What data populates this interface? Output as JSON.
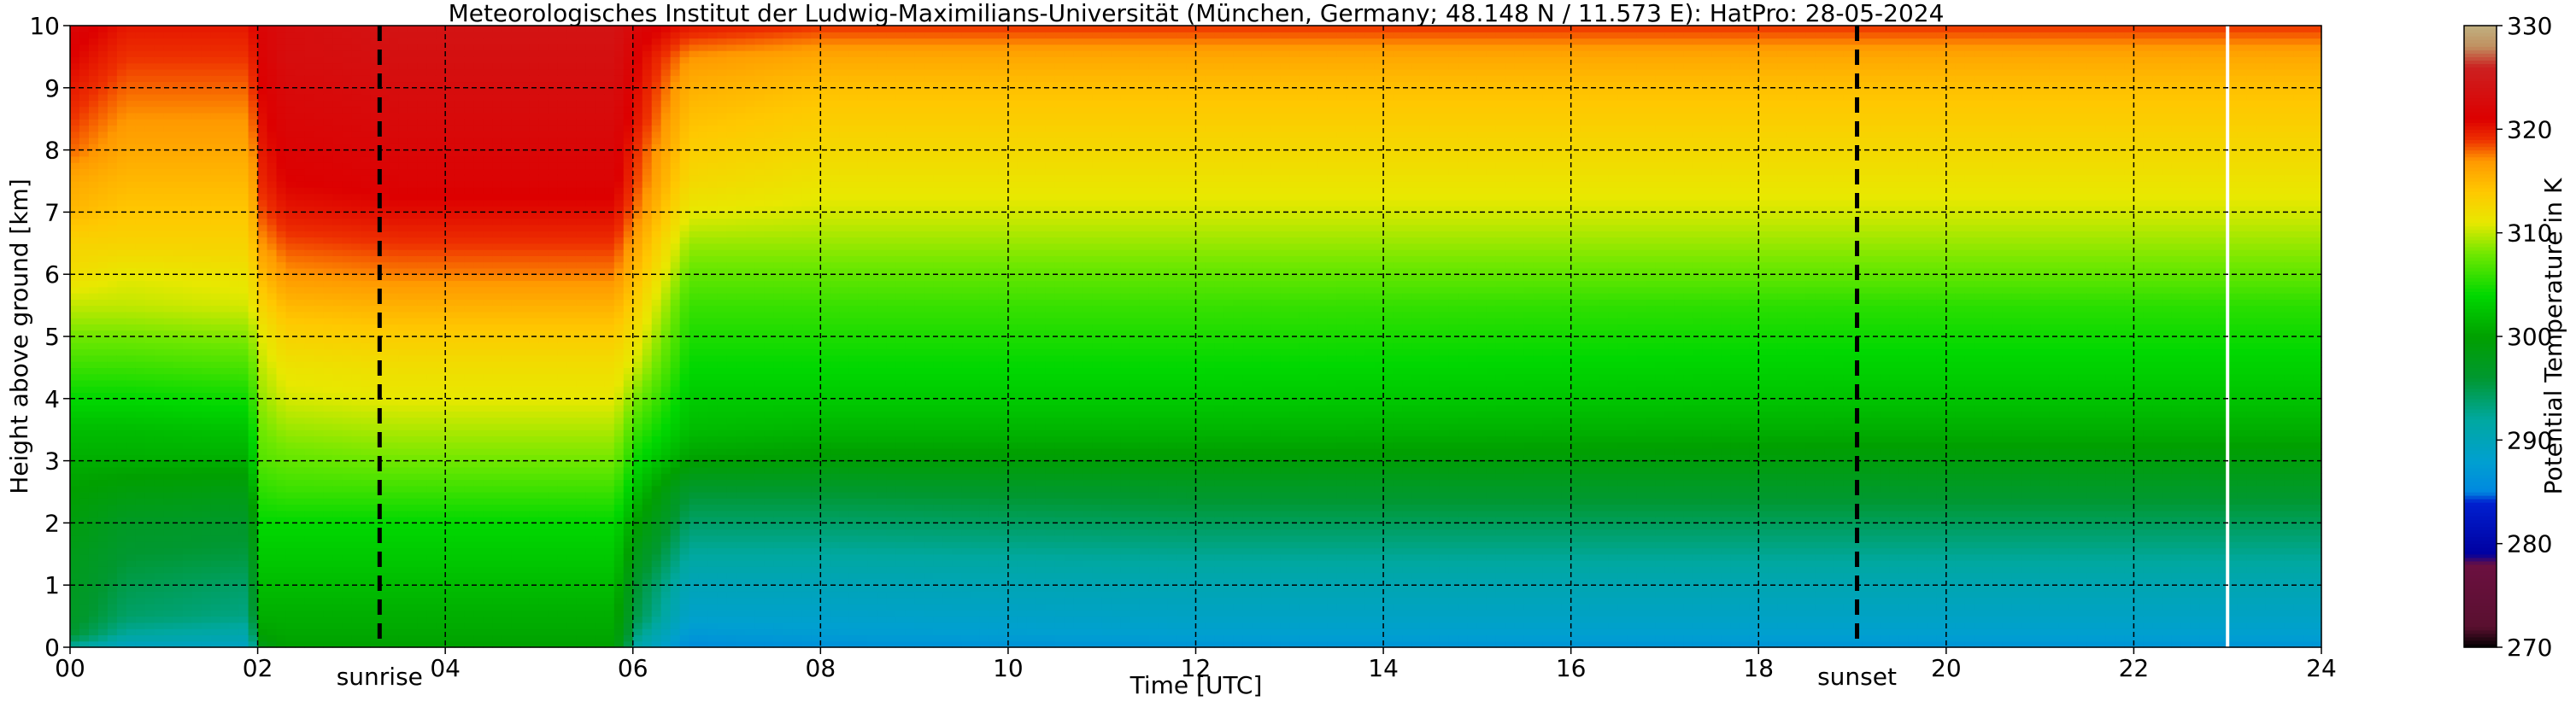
{
  "chart_data": {
    "type": "heatmap",
    "title": "Meteorologisches Institut der Ludwig-Maximilians-Universität (München, Germany; 48.148 N / 11.573 E):    HatPro: 28-05-2024",
    "xlabel": "Time [UTC]",
    "ylabel": "Height above ground [km]",
    "colorbar_label": "Potential Temperature in K",
    "xlim": [
      0,
      24
    ],
    "ylim": [
      0,
      10
    ],
    "clim": [
      270,
      330
    ],
    "x_ticks": [
      {
        "value": 0,
        "label": "00"
      },
      {
        "value": 2,
        "label": "02"
      },
      {
        "value": 4,
        "label": "04"
      },
      {
        "value": 6,
        "label": "06"
      },
      {
        "value": 8,
        "label": "08"
      },
      {
        "value": 10,
        "label": "10"
      },
      {
        "value": 12,
        "label": "12"
      },
      {
        "value": 14,
        "label": "14"
      },
      {
        "value": 16,
        "label": "16"
      },
      {
        "value": 18,
        "label": "18"
      },
      {
        "value": 20,
        "label": "20"
      },
      {
        "value": 22,
        "label": "22"
      },
      {
        "value": 24,
        "label": "24"
      }
    ],
    "y_ticks": [
      {
        "value": 0,
        "label": "0"
      },
      {
        "value": 1,
        "label": "1"
      },
      {
        "value": 2,
        "label": "2"
      },
      {
        "value": 3,
        "label": "3"
      },
      {
        "value": 4,
        "label": "4"
      },
      {
        "value": 5,
        "label": "5"
      },
      {
        "value": 6,
        "label": "6"
      },
      {
        "value": 7,
        "label": "7"
      },
      {
        "value": 8,
        "label": "8"
      },
      {
        "value": 9,
        "label": "9"
      },
      {
        "value": 10,
        "label": "10"
      }
    ],
    "colorbar_ticks": [
      {
        "value": 270,
        "label": "270"
      },
      {
        "value": 280,
        "label": "280"
      },
      {
        "value": 290,
        "label": "290"
      },
      {
        "value": 300,
        "label": "300"
      },
      {
        "value": 310,
        "label": "310"
      },
      {
        "value": 320,
        "label": "320"
      },
      {
        "value": 330,
        "label": "330"
      }
    ],
    "annotations": [
      {
        "x": 3.3,
        "label": "sunrise"
      },
      {
        "x": 19.05,
        "label": "sunset"
      }
    ],
    "grid": true,
    "colormap": [
      {
        "value": 270,
        "color": "#000000"
      },
      {
        "value": 272,
        "color": "#5a1030"
      },
      {
        "value": 278,
        "color": "#6b1040"
      },
      {
        "value": 279,
        "color": "#0000a0"
      },
      {
        "value": 284,
        "color": "#0020d0"
      },
      {
        "value": 285,
        "color": "#0088e0"
      },
      {
        "value": 288,
        "color": "#00a0d0"
      },
      {
        "value": 292,
        "color": "#00a8a0"
      },
      {
        "value": 296,
        "color": "#009830"
      },
      {
        "value": 300,
        "color": "#00a000"
      },
      {
        "value": 304,
        "color": "#00d800"
      },
      {
        "value": 308,
        "color": "#70e800"
      },
      {
        "value": 311,
        "color": "#e8e800"
      },
      {
        "value": 314,
        "color": "#ffc800"
      },
      {
        "value": 317,
        "color": "#ff9800"
      },
      {
        "value": 319,
        "color": "#ee3000"
      },
      {
        "value": 321,
        "color": "#dd0000"
      },
      {
        "value": 326,
        "color": "#cc2020"
      },
      {
        "value": 328,
        "color": "#c09060"
      },
      {
        "value": 330,
        "color": "#c0b080"
      }
    ],
    "profile_heights_km": [
      0,
      0.2,
      0.5,
      1,
      1.5,
      2,
      2.5,
      3,
      3.5,
      4,
      4.5,
      5,
      5.5,
      6,
      6.5,
      7,
      7.5,
      8,
      8.5,
      9,
      9.5,
      10
    ],
    "profiles": [
      {
        "time": 0.0,
        "theta": [
          292,
          296,
          297,
          297.5,
          298,
          299,
          300,
          301,
          302,
          304,
          306,
          308,
          310,
          312,
          313,
          315,
          316,
          318,
          319,
          320,
          321,
          322
        ]
      },
      {
        "time": 0.6,
        "theta": [
          289,
          292,
          294,
          295,
          296,
          297,
          299,
          301,
          302,
          304,
          306,
          308,
          310,
          311,
          313,
          314,
          315,
          316,
          317,
          318,
          319,
          320
        ]
      },
      {
        "time": 1.9,
        "theta": [
          289,
          291,
          293,
          294,
          295.5,
          296.5,
          298.5,
          301,
          302.5,
          304.5,
          306.5,
          308.5,
          310.5,
          311.5,
          313,
          314,
          315,
          316,
          317,
          318,
          319,
          320
        ]
      },
      {
        "time": 2.05,
        "theta": [
          298,
          300,
          301,
          302,
          303,
          304,
          305.5,
          307,
          308,
          309,
          310,
          311,
          313,
          315,
          317,
          318.5,
          319.5,
          320,
          320.5,
          321,
          321.5,
          322
        ]
      },
      {
        "time": 2.3,
        "theta": [
          300,
          300.5,
          301,
          302,
          303,
          304,
          306,
          307.5,
          309,
          310.5,
          311.5,
          313,
          315,
          317,
          318.5,
          320,
          321,
          321.5,
          322,
          322.5,
          323,
          323
        ]
      },
      {
        "time": 3.5,
        "theta": [
          300,
          300.5,
          301,
          302,
          303,
          304,
          306,
          308,
          309.5,
          311,
          312,
          313.5,
          315.5,
          317.5,
          319,
          320.5,
          321.5,
          322,
          322.5,
          323,
          323.5,
          324
        ]
      },
      {
        "time": 5.8,
        "theta": [
          300,
          300.5,
          301,
          302,
          303,
          304,
          306,
          308,
          309.5,
          311,
          312,
          313.5,
          315.5,
          317.5,
          319,
          320.5,
          321.5,
          322,
          322.5,
          323,
          323.5,
          324
        ]
      },
      {
        "time": 6.05,
        "theta": [
          291,
          293,
          295,
          296,
          298,
          300,
          302,
          304,
          306,
          308,
          310,
          311.5,
          313,
          314.5,
          316,
          317.5,
          318.5,
          319,
          320,
          320.5,
          321,
          322
        ]
      },
      {
        "time": 6.6,
        "theta": [
          285.5,
          287,
          288.5,
          290,
          292,
          294,
          296,
          300,
          302,
          303,
          304,
          305,
          306,
          307.5,
          309,
          311,
          312.5,
          313.5,
          314.5,
          315.5,
          317,
          320
        ]
      },
      {
        "time": 8.0,
        "theta": [
          286,
          287.5,
          288.5,
          290,
          292,
          294,
          296,
          299.5,
          301.5,
          303,
          304,
          305,
          306,
          307.5,
          309,
          310.5,
          311.5,
          312.5,
          313.5,
          314.5,
          316,
          319
        ]
      },
      {
        "time": 12.0,
        "theta": [
          286.5,
          288,
          289,
          290.5,
          292.5,
          294.5,
          296.5,
          299.5,
          301.5,
          303,
          304,
          305,
          306,
          307.5,
          309,
          310.5,
          311.5,
          312.5,
          313.5,
          314.5,
          316,
          319
        ]
      },
      {
        "time": 19.0,
        "theta": [
          286.5,
          288,
          289,
          290.5,
          292.5,
          294.5,
          296.5,
          299,
          301,
          302.5,
          303.5,
          304.5,
          305.5,
          307.5,
          309,
          310.5,
          311.5,
          312.5,
          313.5,
          314.5,
          316,
          319
        ]
      },
      {
        "time": 24.0,
        "theta": [
          286.5,
          288,
          289,
          290.5,
          292.5,
          294.5,
          296.5,
          299,
          301,
          302.5,
          303.5,
          304.5,
          305.5,
          307.5,
          309,
          310.5,
          311.5,
          312.5,
          313.5,
          314.5,
          316,
          319
        ]
      }
    ],
    "gap_times": [
      23.0
    ]
  }
}
